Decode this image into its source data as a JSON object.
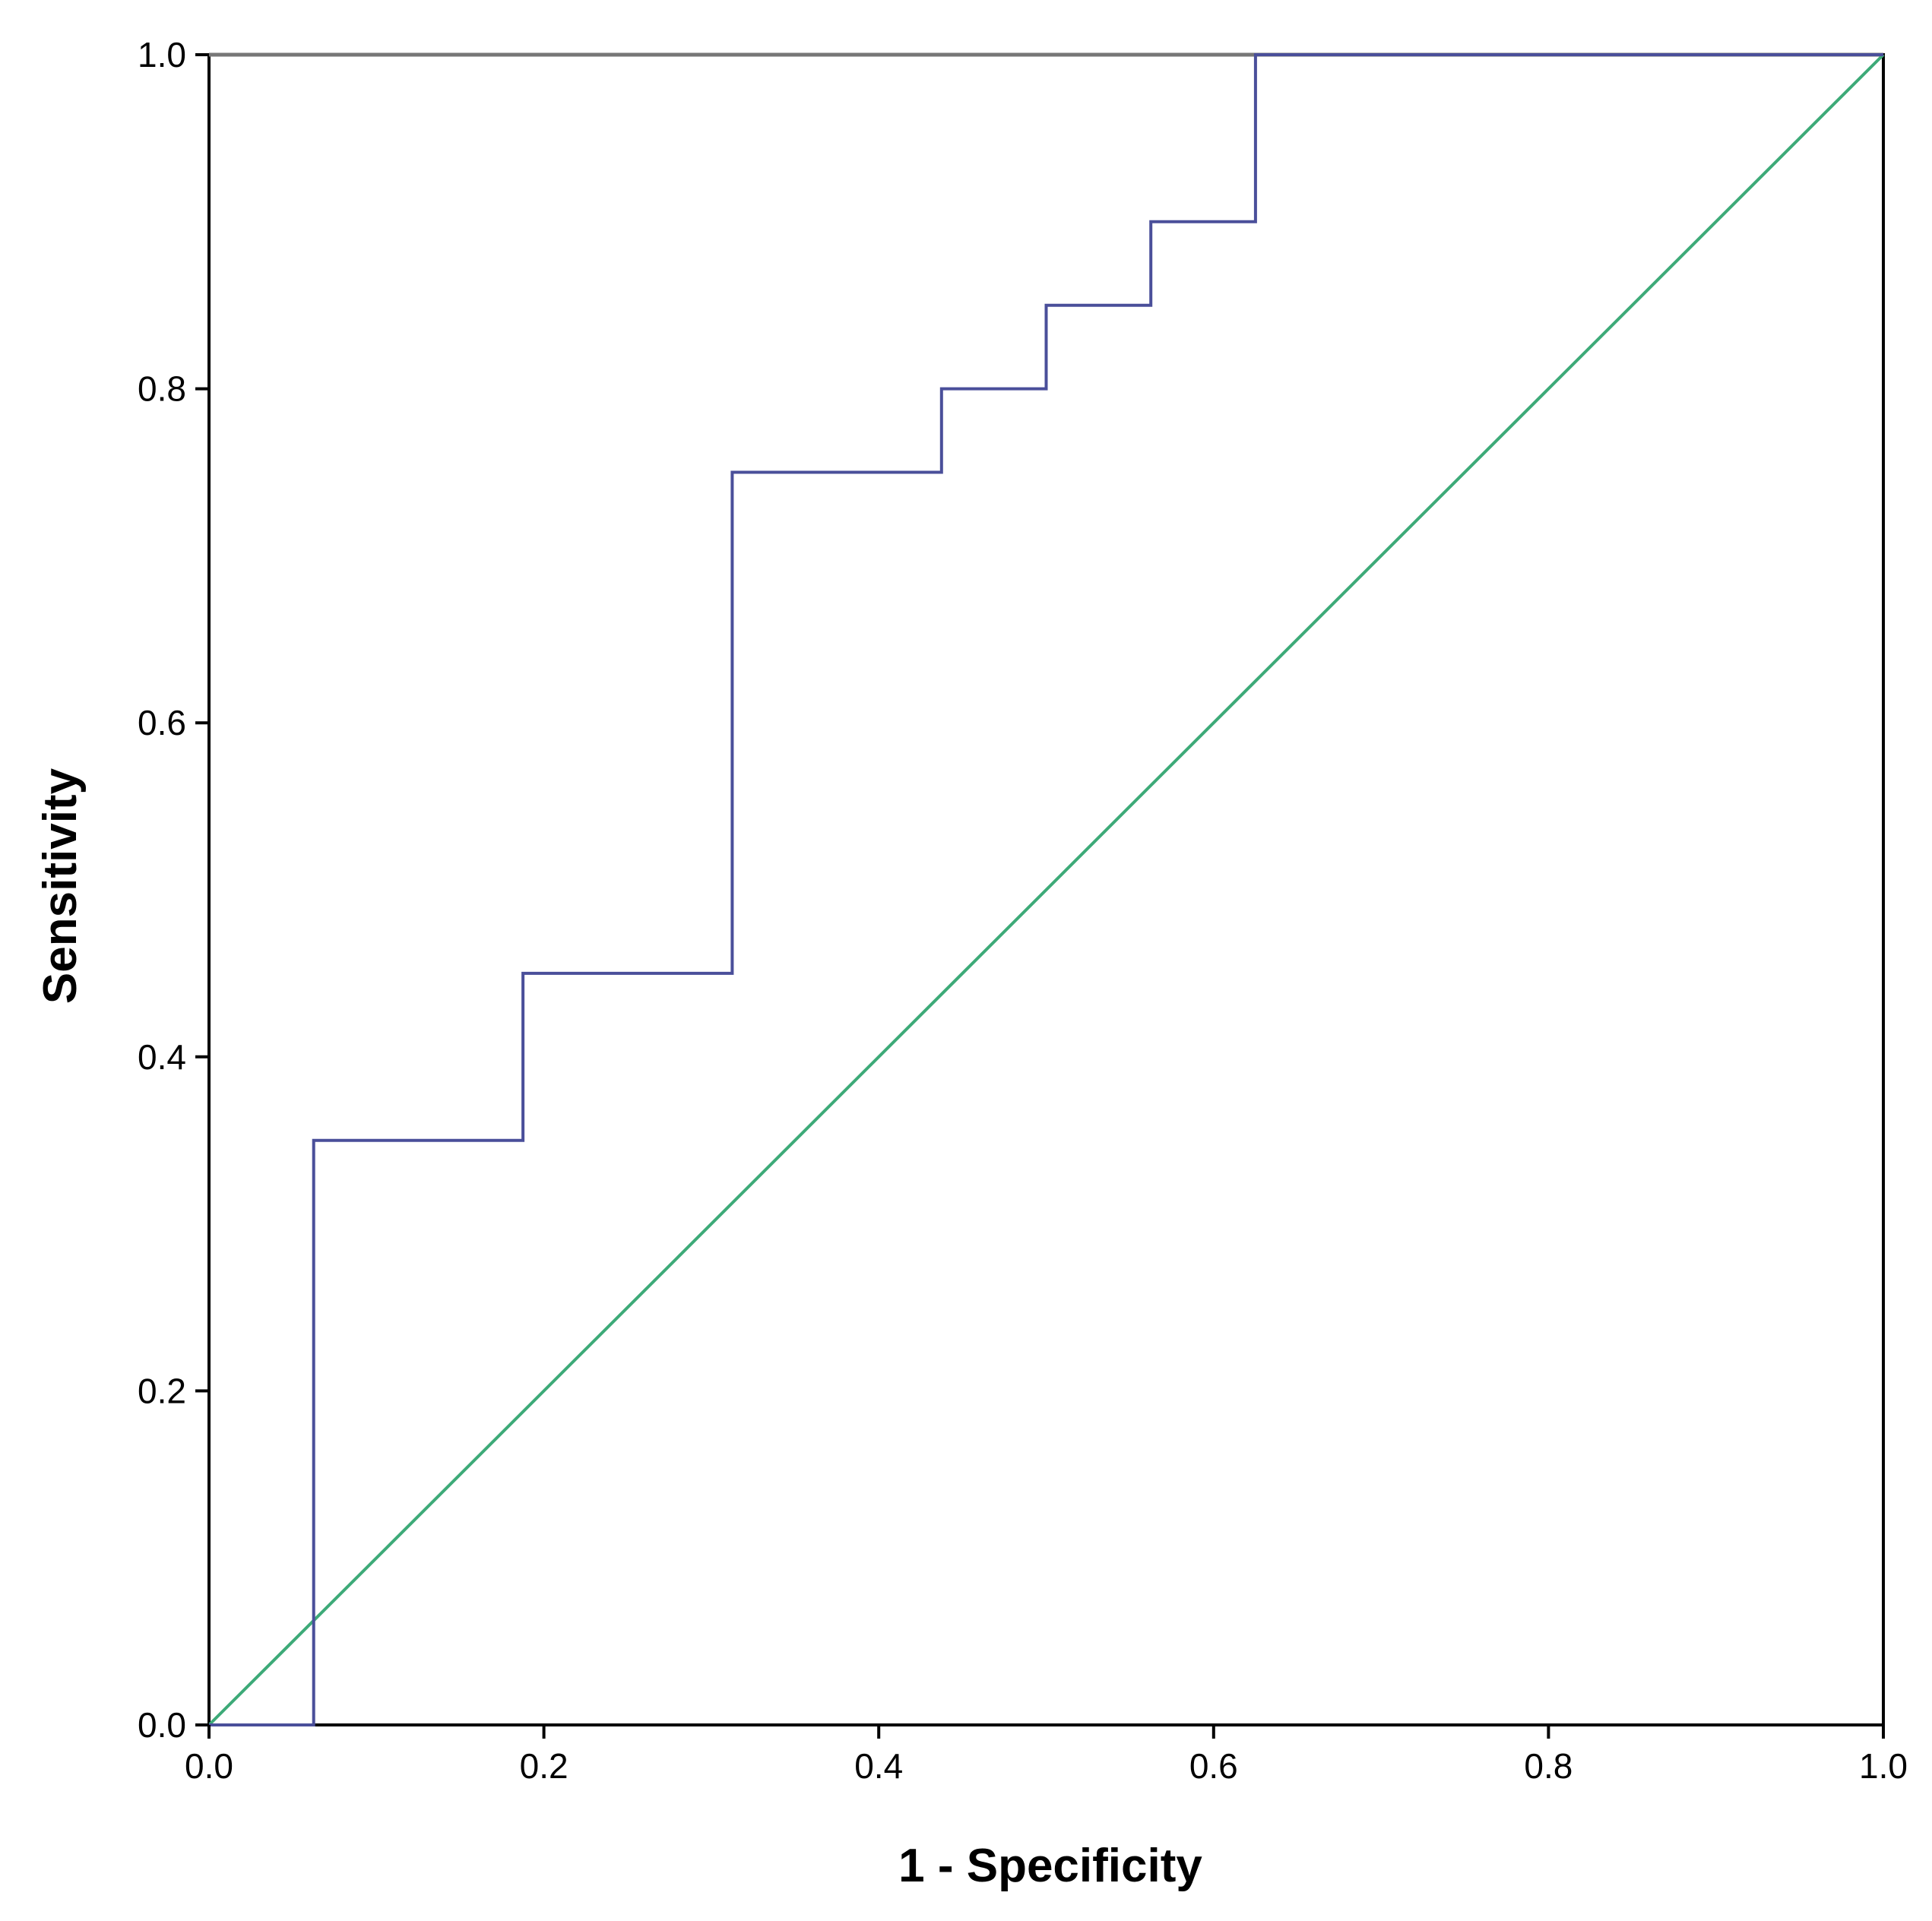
{
  "chart_data": {
    "type": "line",
    "title": "",
    "xlabel": "1 - Specificity",
    "ylabel": "Sensitivity",
    "xlim": [
      0.0,
      1.0
    ],
    "ylim": [
      0.0,
      1.0
    ],
    "x_ticks": [
      "0.0",
      "0.2",
      "0.4",
      "0.6",
      "0.8",
      "1.0"
    ],
    "y_ticks": [
      "0.0",
      "0.2",
      "0.4",
      "0.6",
      "0.8",
      "1.0"
    ],
    "grid": false,
    "legend": "none",
    "series": [
      {
        "style": "step",
        "color": "#4a4f9a",
        "x": [
          0.0,
          0.0625,
          0.0625,
          0.1875,
          0.1875,
          0.3125,
          0.3125,
          0.4375,
          0.4375,
          0.5,
          0.5,
          0.5625,
          0.5625,
          0.625,
          0.625,
          1.0
        ],
        "y": [
          0.0,
          0.0,
          0.35,
          0.35,
          0.45,
          0.45,
          0.75,
          0.75,
          0.8,
          0.8,
          0.85,
          0.85,
          0.9,
          0.9,
          1.0,
          1.0
        ]
      },
      {
        "style": "reference",
        "color": "#3daa78",
        "x": [
          0.0,
          1.0
        ],
        "y": [
          0.0,
          1.0
        ]
      }
    ]
  }
}
